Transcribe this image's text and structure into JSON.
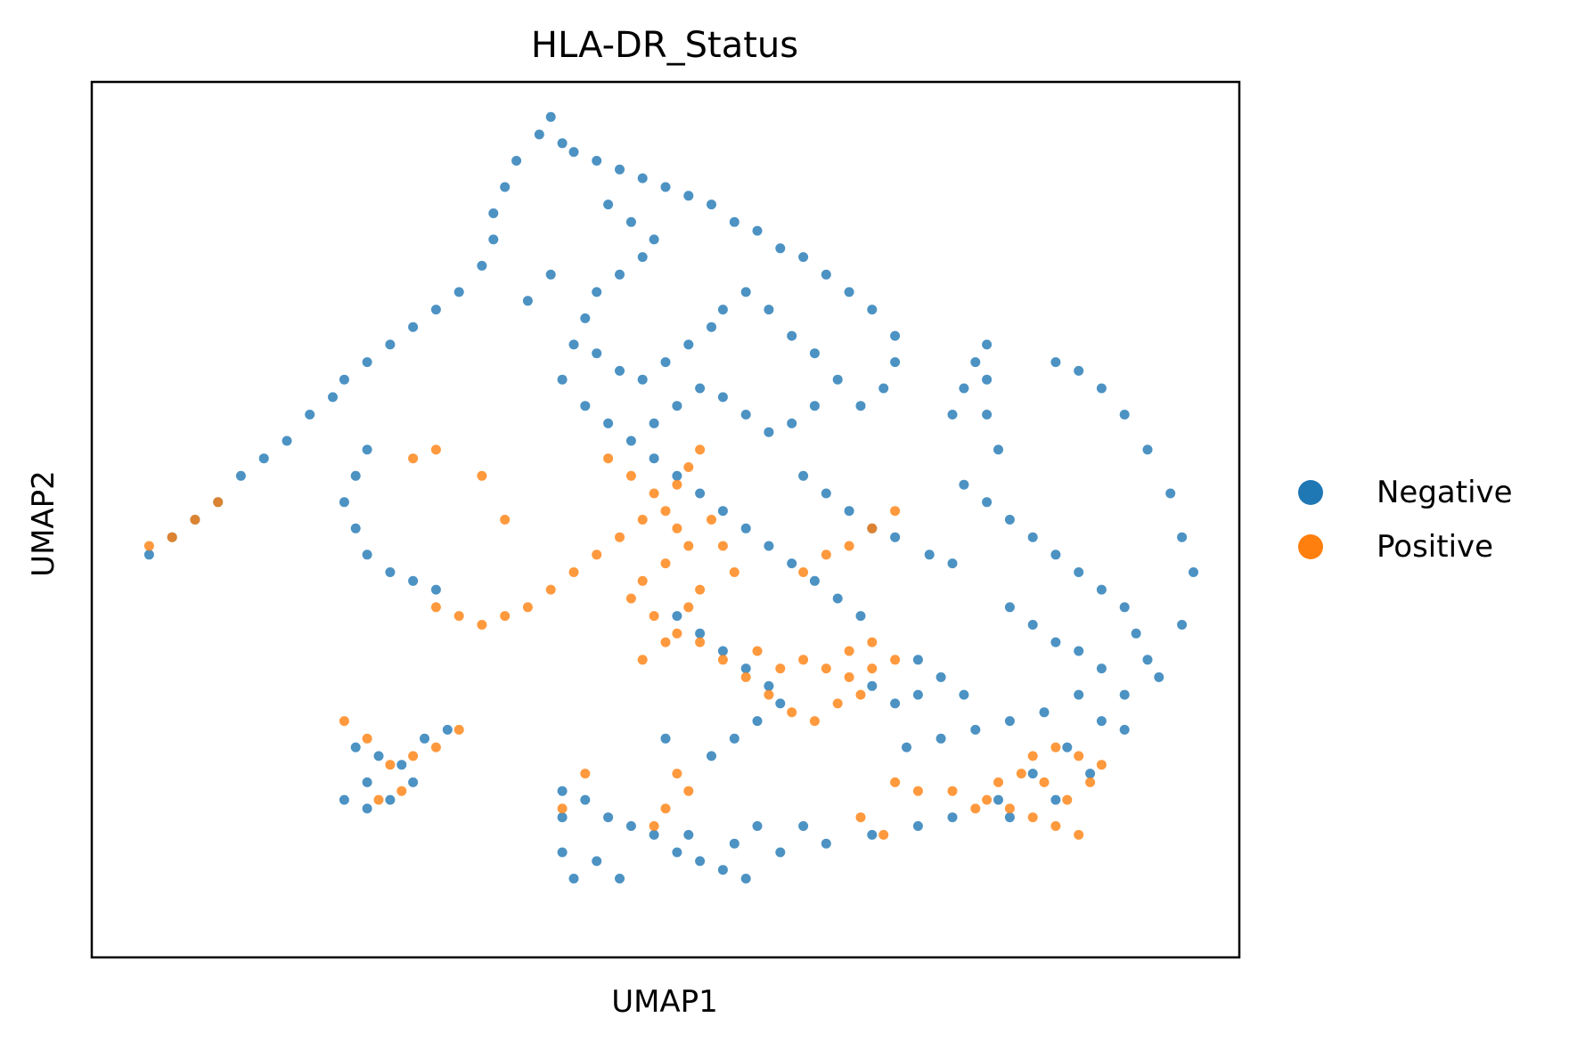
{
  "chart_data": {
    "type": "scatter",
    "title": "HLA-DR_Status",
    "xlabel": "UMAP1",
    "ylabel": "UMAP2",
    "xlim": [
      0,
      100
    ],
    "ylim": [
      0,
      100
    ],
    "grid": false,
    "ticks": "none",
    "legend_position": "right, outside plot",
    "series": [
      {
        "name": "Negative",
        "color": "#1f77b4",
        "points": [
          [
            40,
            96
          ],
          [
            39,
            94
          ],
          [
            41,
            93
          ],
          [
            42,
            92
          ],
          [
            44,
            91
          ],
          [
            46,
            90
          ],
          [
            48,
            89
          ],
          [
            50,
            88
          ],
          [
            52,
            87
          ],
          [
            54,
            86
          ],
          [
            56,
            84
          ],
          [
            58,
            83
          ],
          [
            60,
            81
          ],
          [
            62,
            80
          ],
          [
            64,
            78
          ],
          [
            66,
            76
          ],
          [
            68,
            74
          ],
          [
            70,
            71
          ],
          [
            70,
            68
          ],
          [
            69,
            65
          ],
          [
            67,
            63
          ],
          [
            37,
            91
          ],
          [
            36,
            88
          ],
          [
            35,
            85
          ],
          [
            35,
            82
          ],
          [
            34,
            79
          ],
          [
            32,
            76
          ],
          [
            30,
            74
          ],
          [
            28,
            72
          ],
          [
            26,
            70
          ],
          [
            24,
            68
          ],
          [
            22,
            66
          ],
          [
            21,
            64
          ],
          [
            19,
            62
          ],
          [
            45,
            86
          ],
          [
            47,
            84
          ],
          [
            49,
            82
          ],
          [
            48,
            80
          ],
          [
            46,
            78
          ],
          [
            44,
            76
          ],
          [
            43,
            73
          ],
          [
            42,
            70
          ],
          [
            44,
            69
          ],
          [
            46,
            67
          ],
          [
            48,
            66
          ],
          [
            50,
            68
          ],
          [
            52,
            70
          ],
          [
            54,
            72
          ],
          [
            55,
            74
          ],
          [
            57,
            76
          ],
          [
            59,
            74
          ],
          [
            61,
            71
          ],
          [
            63,
            69
          ],
          [
            65,
            66
          ],
          [
            63,
            63
          ],
          [
            61,
            61
          ],
          [
            59,
            60
          ],
          [
            57,
            62
          ],
          [
            55,
            64
          ],
          [
            53,
            65
          ],
          [
            51,
            63
          ],
          [
            49,
            61
          ],
          [
            40,
            78
          ],
          [
            38,
            75
          ],
          [
            41,
            66
          ],
          [
            43,
            63
          ],
          [
            45,
            61
          ],
          [
            47,
            59
          ],
          [
            49,
            57
          ],
          [
            51,
            55
          ],
          [
            53,
            53
          ],
          [
            55,
            51
          ],
          [
            57,
            49
          ],
          [
            59,
            47
          ],
          [
            61,
            45
          ],
          [
            63,
            43
          ],
          [
            65,
            41
          ],
          [
            67,
            39
          ],
          [
            62,
            55
          ],
          [
            64,
            53
          ],
          [
            66,
            51
          ],
          [
            68,
            49
          ],
          [
            70,
            48
          ],
          [
            73,
            46
          ],
          [
            75,
            45
          ],
          [
            75,
            62
          ],
          [
            76,
            65
          ],
          [
            77,
            68
          ],
          [
            78,
            70
          ],
          [
            78,
            66
          ],
          [
            78,
            62
          ],
          [
            79,
            58
          ],
          [
            76,
            54
          ],
          [
            78,
            52
          ],
          [
            80,
            50
          ],
          [
            82,
            48
          ],
          [
            84,
            46
          ],
          [
            86,
            44
          ],
          [
            88,
            42
          ],
          [
            90,
            40
          ],
          [
            91,
            37
          ],
          [
            92,
            34
          ],
          [
            90,
            30
          ],
          [
            88,
            27
          ],
          [
            85,
            24
          ],
          [
            82,
            21
          ],
          [
            79,
            18
          ],
          [
            75,
            16
          ],
          [
            72,
            15
          ],
          [
            68,
            14
          ],
          [
            84,
            68
          ],
          [
            86,
            67
          ],
          [
            88,
            65
          ],
          [
            90,
            62
          ],
          [
            92,
            58
          ],
          [
            94,
            53
          ],
          [
            95,
            48
          ],
          [
            96,
            44
          ],
          [
            95,
            38
          ],
          [
            93,
            32
          ],
          [
            90,
            26
          ],
          [
            87,
            21
          ],
          [
            84,
            18
          ],
          [
            80,
            16
          ],
          [
            80,
            40
          ],
          [
            82,
            38
          ],
          [
            84,
            36
          ],
          [
            86,
            35
          ],
          [
            88,
            33
          ],
          [
            86,
            30
          ],
          [
            83,
            28
          ],
          [
            80,
            27
          ],
          [
            77,
            26
          ],
          [
            74,
            25
          ],
          [
            71,
            24
          ],
          [
            24,
            58
          ],
          [
            23,
            55
          ],
          [
            22,
            52
          ],
          [
            23,
            49
          ],
          [
            24,
            46
          ],
          [
            26,
            44
          ],
          [
            28,
            43
          ],
          [
            30,
            42
          ],
          [
            5,
            46
          ],
          [
            7,
            48
          ],
          [
            9,
            50
          ],
          [
            11,
            52
          ],
          [
            13,
            55
          ],
          [
            15,
            57
          ],
          [
            17,
            59
          ],
          [
            23,
            24
          ],
          [
            25,
            23
          ],
          [
            27,
            22
          ],
          [
            28,
            20
          ],
          [
            26,
            18
          ],
          [
            24,
            17
          ],
          [
            22,
            18
          ],
          [
            24,
            20
          ],
          [
            29,
            25
          ],
          [
            31,
            26
          ],
          [
            41,
            19
          ],
          [
            43,
            18
          ],
          [
            45,
            16
          ],
          [
            47,
            15
          ],
          [
            49,
            14
          ],
          [
            51,
            12
          ],
          [
            53,
            11
          ],
          [
            55,
            10
          ],
          [
            57,
            9
          ],
          [
            41,
            16
          ],
          [
            41,
            12
          ],
          [
            42,
            9
          ],
          [
            44,
            11
          ],
          [
            46,
            9
          ],
          [
            52,
            14
          ],
          [
            56,
            13
          ],
          [
            60,
            12
          ],
          [
            64,
            13
          ],
          [
            62,
            15
          ],
          [
            58,
            15
          ],
          [
            51,
            39
          ],
          [
            53,
            37
          ],
          [
            55,
            35
          ],
          [
            57,
            33
          ],
          [
            59,
            31
          ],
          [
            60,
            29
          ],
          [
            58,
            27
          ],
          [
            56,
            25
          ],
          [
            54,
            23
          ],
          [
            50,
            25
          ],
          [
            72,
            34
          ],
          [
            74,
            32
          ],
          [
            76,
            30
          ],
          [
            72,
            30
          ],
          [
            70,
            29
          ],
          [
            68,
            31
          ]
        ]
      },
      {
        "name": "Positive",
        "color": "#ff7f0e",
        "points": [
          [
            45,
            57
          ],
          [
            47,
            55
          ],
          [
            49,
            53
          ],
          [
            48,
            50
          ],
          [
            46,
            48
          ],
          [
            44,
            46
          ],
          [
            42,
            44
          ],
          [
            40,
            42
          ],
          [
            38,
            40
          ],
          [
            36,
            39
          ],
          [
            34,
            38
          ],
          [
            32,
            39
          ],
          [
            30,
            40
          ],
          [
            50,
            51
          ],
          [
            51,
            49
          ],
          [
            52,
            47
          ],
          [
            50,
            45
          ],
          [
            48,
            43
          ],
          [
            47,
            41
          ],
          [
            49,
            39
          ],
          [
            51,
            37
          ],
          [
            53,
            36
          ],
          [
            55,
            34
          ],
          [
            57,
            32
          ],
          [
            59,
            30
          ],
          [
            61,
            28
          ],
          [
            63,
            27
          ],
          [
            65,
            29
          ],
          [
            67,
            30
          ],
          [
            53,
            58
          ],
          [
            52,
            56
          ],
          [
            51,
            54
          ],
          [
            54,
            50
          ],
          [
            55,
            47
          ],
          [
            56,
            44
          ],
          [
            53,
            42
          ],
          [
            52,
            40
          ],
          [
            50,
            36
          ],
          [
            48,
            34
          ],
          [
            58,
            35
          ],
          [
            60,
            33
          ],
          [
            62,
            34
          ],
          [
            64,
            33
          ],
          [
            66,
            32
          ],
          [
            68,
            33
          ],
          [
            70,
            34
          ],
          [
            68,
            36
          ],
          [
            66,
            35
          ],
          [
            62,
            44
          ],
          [
            64,
            46
          ],
          [
            66,
            47
          ],
          [
            68,
            49
          ],
          [
            70,
            51
          ],
          [
            78,
            18
          ],
          [
            80,
            17
          ],
          [
            82,
            16
          ],
          [
            84,
            15
          ],
          [
            86,
            14
          ],
          [
            85,
            18
          ],
          [
            83,
            20
          ],
          [
            81,
            21
          ],
          [
            79,
            20
          ],
          [
            87,
            20
          ],
          [
            88,
            22
          ],
          [
            86,
            23
          ],
          [
            84,
            24
          ],
          [
            82,
            23
          ],
          [
            70,
            20
          ],
          [
            72,
            19
          ],
          [
            75,
            19
          ],
          [
            77,
            17
          ],
          [
            67,
            16
          ],
          [
            69,
            14
          ],
          [
            51,
            21
          ],
          [
            52,
            19
          ],
          [
            50,
            17
          ],
          [
            49,
            15
          ],
          [
            41,
            17
          ],
          [
            43,
            21
          ],
          [
            22,
            27
          ],
          [
            24,
            25
          ],
          [
            26,
            22
          ],
          [
            28,
            23
          ],
          [
            30,
            24
          ],
          [
            32,
            26
          ],
          [
            27,
            19
          ],
          [
            25,
            18
          ],
          [
            5,
            47
          ],
          [
            7,
            48
          ],
          [
            9,
            50
          ],
          [
            11,
            52
          ],
          [
            28,
            57
          ],
          [
            30,
            58
          ],
          [
            34,
            55
          ],
          [
            36,
            50
          ]
        ]
      }
    ]
  }
}
